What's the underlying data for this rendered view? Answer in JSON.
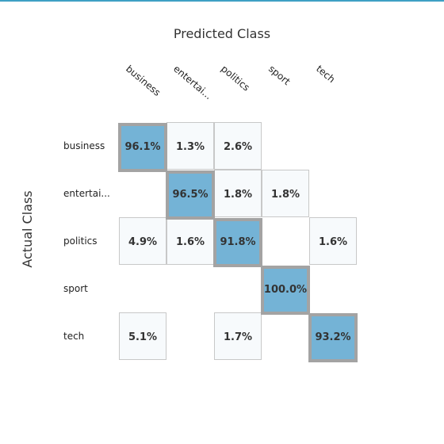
{
  "chart_data": {
    "type": "heatmap",
    "title": "Predicted Class",
    "ylabel": "Actual Class",
    "xlabel": "",
    "x_labels": [
      "business",
      "entertai...",
      "politics",
      "sport",
      "tech"
    ],
    "y_labels": [
      "business",
      "entertai...",
      "politics",
      "sport",
      "tech"
    ],
    "values": [
      [
        96.1,
        1.3,
        2.6,
        null,
        null
      ],
      [
        null,
        96.5,
        1.8,
        1.8,
        null
      ],
      [
        4.9,
        1.6,
        91.8,
        null,
        1.6
      ],
      [
        null,
        null,
        null,
        100.0,
        null
      ],
      [
        5.1,
        null,
        1.7,
        null,
        93.2
      ]
    ],
    "cell_text": [
      [
        "96.1%",
        "1.3%",
        "2.6%",
        "",
        ""
      ],
      [
        "",
        "96.5%",
        "1.8%",
        "1.8%",
        ""
      ],
      [
        "4.9%",
        "1.6%",
        "91.8%",
        "",
        "1.6%"
      ],
      [
        "",
        "",
        "",
        "100.0%",
        ""
      ],
      [
        "5.1%",
        "",
        "1.7%",
        "",
        "93.2%"
      ]
    ],
    "colors": {
      "diagonal_fill": "#74b3d6",
      "diagonal_border": "#a3a3a3",
      "offdiag_fill": "#f7fafc",
      "offdiag_border": "#c8c8c8",
      "accent_bar": "#3ea0c4"
    }
  }
}
